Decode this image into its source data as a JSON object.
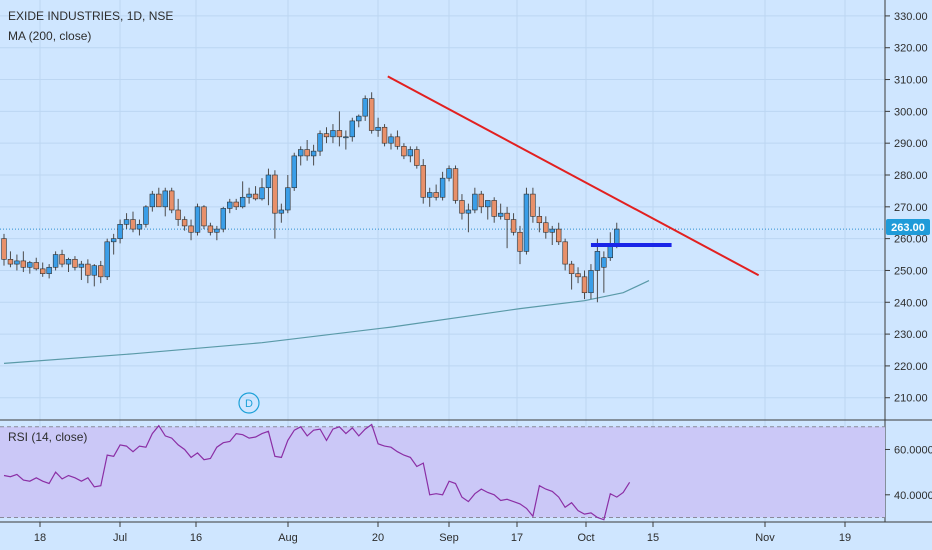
{
  "symbol_title": "EXIDE INDUSTRIES, 1D, NSE",
  "ma_label": "MA (200, close)",
  "rsi_label": "RSI (14, close)",
  "last_price_label": "263.00",
  "event_marker": "D",
  "colors": {
    "background": "#cfe6ff",
    "up": "#3a9ee8",
    "down": "#e8906a",
    "wick": "#4b4b4b",
    "ma": "#5a9aa8",
    "rsi": "#8b2fa5",
    "rsi_band": "#cbc8f7",
    "trendline": "#e22020",
    "support": "#1a25e8",
    "price_tag": "#1f9bd9",
    "last_price_line": "#2d8fd0"
  },
  "chart_data": [
    {
      "type": "candlestick",
      "title": "EXIDE INDUSTRIES, 1D, NSE",
      "x_tick_labels": [
        "18",
        "Jul",
        "16",
        "Aug",
        "20",
        "Sep",
        "17",
        "Oct",
        "15",
        "Nov",
        "19"
      ],
      "y_tick_labels": [
        "210.00",
        "220.00",
        "230.00",
        "240.00",
        "250.00",
        "260.00",
        "270.00",
        "280.00",
        "290.00",
        "300.00",
        "310.00",
        "320.00",
        "330.00"
      ],
      "ylim": [
        203,
        335
      ],
      "last_price": 263.0,
      "candles": [
        {
          "o": 260.0,
          "h": 261.5,
          "l": 251.5,
          "c": 253.5
        },
        {
          "o": 253.5,
          "h": 256.0,
          "l": 251.0,
          "c": 252.0
        },
        {
          "o": 252.0,
          "h": 255.0,
          "l": 250.0,
          "c": 253.0
        },
        {
          "o": 253.0,
          "h": 256.0,
          "l": 249.5,
          "c": 251.0
        },
        {
          "o": 251.0,
          "h": 253.0,
          "l": 249.0,
          "c": 252.5
        },
        {
          "o": 252.5,
          "h": 254.0,
          "l": 250.0,
          "c": 250.5
        },
        {
          "o": 250.5,
          "h": 252.5,
          "l": 248.0,
          "c": 249.0
        },
        {
          "o": 249.0,
          "h": 252.0,
          "l": 247.5,
          "c": 251.0
        },
        {
          "o": 251.0,
          "h": 256.0,
          "l": 250.0,
          "c": 255.0
        },
        {
          "o": 255.0,
          "h": 256.5,
          "l": 251.0,
          "c": 252.0
        },
        {
          "o": 252.0,
          "h": 254.0,
          "l": 249.5,
          "c": 253.5
        },
        {
          "o": 253.5,
          "h": 254.5,
          "l": 250.0,
          "c": 251.0
        },
        {
          "o": 251.0,
          "h": 253.0,
          "l": 247.0,
          "c": 252.0
        },
        {
          "o": 252.0,
          "h": 253.5,
          "l": 246.0,
          "c": 248.5
        },
        {
          "o": 248.5,
          "h": 252.0,
          "l": 245.0,
          "c": 251.5
        },
        {
          "o": 251.5,
          "h": 253.0,
          "l": 246.0,
          "c": 248.0
        },
        {
          "o": 248.0,
          "h": 260.0,
          "l": 247.0,
          "c": 259.0
        },
        {
          "o": 259.0,
          "h": 261.5,
          "l": 255.0,
          "c": 260.0
        },
        {
          "o": 260.0,
          "h": 266.0,
          "l": 258.5,
          "c": 264.5
        },
        {
          "o": 264.5,
          "h": 268.0,
          "l": 263.0,
          "c": 266.0
        },
        {
          "o": 266.0,
          "h": 268.5,
          "l": 262.0,
          "c": 263.0
        },
        {
          "o": 263.0,
          "h": 266.0,
          "l": 261.0,
          "c": 264.5
        },
        {
          "o": 264.5,
          "h": 270.5,
          "l": 263.5,
          "c": 270.0
        },
        {
          "o": 270.0,
          "h": 275.0,
          "l": 268.5,
          "c": 274.0
        },
        {
          "o": 274.0,
          "h": 276.0,
          "l": 271.0,
          "c": 270.0
        },
        {
          "o": 270.0,
          "h": 276.0,
          "l": 267.0,
          "c": 275.0
        },
        {
          "o": 275.0,
          "h": 276.0,
          "l": 268.0,
          "c": 269.0
        },
        {
          "o": 269.0,
          "h": 272.5,
          "l": 264.0,
          "c": 266.0
        },
        {
          "o": 266.0,
          "h": 267.0,
          "l": 262.5,
          "c": 264.0
        },
        {
          "o": 264.0,
          "h": 266.0,
          "l": 259.5,
          "c": 262.0
        },
        {
          "o": 262.0,
          "h": 271.0,
          "l": 261.0,
          "c": 270.0
        },
        {
          "o": 270.0,
          "h": 270.5,
          "l": 263.0,
          "c": 264.0
        },
        {
          "o": 264.0,
          "h": 265.0,
          "l": 261.0,
          "c": 262.0
        },
        {
          "o": 262.0,
          "h": 264.0,
          "l": 259.5,
          "c": 263.0
        },
        {
          "o": 263.0,
          "h": 270.0,
          "l": 262.0,
          "c": 269.5
        },
        {
          "o": 269.5,
          "h": 272.5,
          "l": 268.0,
          "c": 271.5
        },
        {
          "o": 271.5,
          "h": 272.5,
          "l": 269.0,
          "c": 270.0
        },
        {
          "o": 270.0,
          "h": 278.0,
          "l": 269.5,
          "c": 273.0
        },
        {
          "o": 273.0,
          "h": 276.0,
          "l": 271.0,
          "c": 274.0
        },
        {
          "o": 274.0,
          "h": 276.5,
          "l": 272.0,
          "c": 272.5
        },
        {
          "o": 272.5,
          "h": 279.0,
          "l": 272.0,
          "c": 276.0
        },
        {
          "o": 276.0,
          "h": 282.0,
          "l": 270.5,
          "c": 280.0
        },
        {
          "o": 280.0,
          "h": 281.5,
          "l": 260.0,
          "c": 268.0
        },
        {
          "o": 268.0,
          "h": 271.0,
          "l": 265.0,
          "c": 269.0
        },
        {
          "o": 269.0,
          "h": 280.0,
          "l": 268.0,
          "c": 276.0
        },
        {
          "o": 276.0,
          "h": 287.0,
          "l": 275.0,
          "c": 286.0
        },
        {
          "o": 286.0,
          "h": 289.0,
          "l": 283.0,
          "c": 288.0
        },
        {
          "o": 288.0,
          "h": 291.0,
          "l": 284.5,
          "c": 286.0
        },
        {
          "o": 286.0,
          "h": 289.5,
          "l": 283.0,
          "c": 287.5
        },
        {
          "o": 287.5,
          "h": 294.0,
          "l": 286.0,
          "c": 293.0
        },
        {
          "o": 293.0,
          "h": 295.0,
          "l": 290.0,
          "c": 292.0
        },
        {
          "o": 292.0,
          "h": 296.0,
          "l": 290.0,
          "c": 294.0
        },
        {
          "o": 294.0,
          "h": 300.0,
          "l": 289.0,
          "c": 292.0
        },
        {
          "o": 292.0,
          "h": 294.0,
          "l": 288.0,
          "c": 292.0
        },
        {
          "o": 292.0,
          "h": 298.0,
          "l": 290.5,
          "c": 297.0
        },
        {
          "o": 297.0,
          "h": 299.0,
          "l": 295.0,
          "c": 298.5
        },
        {
          "o": 298.5,
          "h": 305.0,
          "l": 297.0,
          "c": 304.0
        },
        {
          "o": 304.0,
          "h": 306.0,
          "l": 293.0,
          "c": 294.0
        },
        {
          "o": 294.0,
          "h": 298.0,
          "l": 292.0,
          "c": 295.0
        },
        {
          "o": 295.0,
          "h": 296.0,
          "l": 289.0,
          "c": 290.0
        },
        {
          "o": 290.0,
          "h": 293.0,
          "l": 288.0,
          "c": 292.0
        },
        {
          "o": 292.0,
          "h": 294.0,
          "l": 288.0,
          "c": 289.0
        },
        {
          "o": 289.0,
          "h": 290.0,
          "l": 285.0,
          "c": 286.0
        },
        {
          "o": 286.0,
          "h": 289.0,
          "l": 284.0,
          "c": 288.0
        },
        {
          "o": 288.0,
          "h": 289.0,
          "l": 282.0,
          "c": 283.0
        },
        {
          "o": 283.0,
          "h": 285.0,
          "l": 271.0,
          "c": 273.0
        },
        {
          "o": 273.0,
          "h": 276.0,
          "l": 270.0,
          "c": 274.5
        },
        {
          "o": 274.5,
          "h": 277.0,
          "l": 272.0,
          "c": 273.0
        },
        {
          "o": 273.0,
          "h": 281.0,
          "l": 272.0,
          "c": 279.0
        },
        {
          "o": 279.0,
          "h": 283.0,
          "l": 278.0,
          "c": 282.0
        },
        {
          "o": 282.0,
          "h": 283.0,
          "l": 271.0,
          "c": 272.0
        },
        {
          "o": 272.0,
          "h": 274.0,
          "l": 266.0,
          "c": 268.0
        },
        {
          "o": 268.0,
          "h": 271.0,
          "l": 262.0,
          "c": 269.0
        },
        {
          "o": 269.0,
          "h": 276.0,
          "l": 268.0,
          "c": 274.0
        },
        {
          "o": 274.0,
          "h": 275.0,
          "l": 268.0,
          "c": 270.0
        },
        {
          "o": 270.0,
          "h": 272.0,
          "l": 266.0,
          "c": 272.0
        },
        {
          "o": 272.0,
          "h": 273.0,
          "l": 265.0,
          "c": 267.0
        },
        {
          "o": 267.0,
          "h": 271.0,
          "l": 266.0,
          "c": 268.0
        },
        {
          "o": 268.0,
          "h": 270.0,
          "l": 257.0,
          "c": 266.0
        },
        {
          "o": 266.0,
          "h": 268.0,
          "l": 261.0,
          "c": 262.0
        },
        {
          "o": 262.0,
          "h": 264.0,
          "l": 252.0,
          "c": 256.0
        },
        {
          "o": 256.0,
          "h": 276.0,
          "l": 255.0,
          "c": 274.0
        },
        {
          "o": 274.0,
          "h": 276.0,
          "l": 265.0,
          "c": 267.0
        },
        {
          "o": 267.0,
          "h": 270.0,
          "l": 262.0,
          "c": 265.0
        },
        {
          "o": 265.0,
          "h": 267.0,
          "l": 260.0,
          "c": 262.0
        },
        {
          "o": 262.0,
          "h": 264.0,
          "l": 258.0,
          "c": 263.0
        },
        {
          "o": 263.0,
          "h": 265.0,
          "l": 258.0,
          "c": 259.0
        },
        {
          "o": 259.0,
          "h": 260.0,
          "l": 250.0,
          "c": 252.0
        },
        {
          "o": 252.0,
          "h": 253.0,
          "l": 244.0,
          "c": 249.0
        },
        {
          "o": 249.0,
          "h": 251.0,
          "l": 246.0,
          "c": 248.0
        },
        {
          "o": 248.0,
          "h": 250.0,
          "l": 241.0,
          "c": 243.0
        },
        {
          "o": 243.0,
          "h": 252.0,
          "l": 241.0,
          "c": 250.0
        },
        {
          "o": 250.0,
          "h": 260.0,
          "l": 240.0,
          "c": 256.0
        },
        {
          "o": 251.0,
          "h": 256.0,
          "l": 243.0,
          "c": 254.0
        },
        {
          "o": 254.0,
          "h": 262.0,
          "l": 253.0,
          "c": 257.5
        },
        {
          "o": 257.5,
          "h": 265.0,
          "l": 257.0,
          "c": 263.0
        }
      ],
      "ma200": [
        {
          "i": 0,
          "v": 220.8
        },
        {
          "i": 20,
          "v": 223.8
        },
        {
          "i": 40,
          "v": 227.3
        },
        {
          "i": 60,
          "v": 232.2
        },
        {
          "i": 80,
          "v": 238.0
        },
        {
          "i": 90,
          "v": 240.5
        },
        {
          "i": 96,
          "v": 243.0
        },
        {
          "i": 100,
          "v": 246.8
        }
      ],
      "trendline": [
        {
          "i": 59.5,
          "v": 311.0
        },
        {
          "i": 117,
          "v": 248.5
        }
      ],
      "support_line": [
        {
          "i": 91,
          "v": 258.0
        },
        {
          "i": 103.5,
          "v": 258.0
        }
      ],
      "rsi": {
        "name": "RSI (14, close)",
        "yticks": [
          "60.0000",
          "40.0000"
        ],
        "ylim": [
          28,
          73
        ],
        "upper_band": 70,
        "lower_band": 30,
        "values": [
          48.5,
          48.0,
          49.0,
          46.5,
          46.0,
          47.5,
          46.0,
          45.0,
          50.0,
          47.0,
          48.5,
          47.5,
          46.0,
          47.5,
          43.5,
          44.0,
          57.5,
          57.0,
          62.0,
          61.5,
          59.0,
          61.5,
          61.0,
          67.0,
          70.5,
          66.0,
          65.0,
          62.0,
          60.0,
          56.5,
          58.5,
          55.5,
          56.0,
          61.0,
          63.0,
          63.5,
          67.0,
          66.5,
          65.0,
          65.5,
          67.0,
          68.0,
          57.0,
          56.5,
          64.0,
          68.5,
          70.0,
          66.0,
          68.5,
          69.0,
          64.0,
          69.0,
          70.0,
          67.0,
          69.5,
          66.0,
          69.0,
          71.0,
          62.5,
          61.5,
          61.0,
          59.0,
          57.5,
          56.5,
          52.5,
          54.0,
          40.0,
          40.5,
          40.0,
          46.0,
          45.0,
          39.0,
          37.0,
          40.5,
          42.5,
          41.0,
          40.0,
          37.5,
          38.0,
          37.0,
          36.0,
          34.0,
          30.5,
          44.0,
          42.5,
          41.5,
          39.0,
          34.5,
          36.5,
          33.0,
          31.5,
          32.0,
          30.0,
          29.0,
          40.5,
          39.0,
          41.0,
          45.5
        ]
      }
    }
  ]
}
